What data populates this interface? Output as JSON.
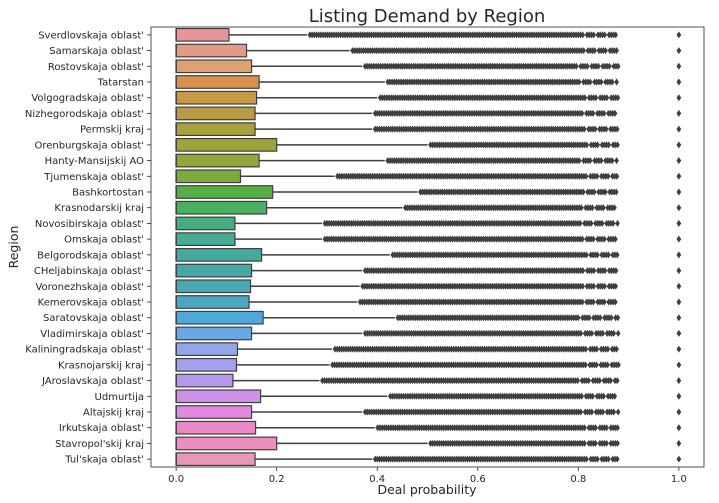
{
  "chart_data": {
    "type": "box",
    "orientation": "horizontal",
    "title": "Listing Demand by Region",
    "xlabel": "Deal probability",
    "ylabel": "Region",
    "xlim": [
      -0.05,
      1.05
    ],
    "xticks": [
      0.0,
      0.2,
      0.4,
      0.6,
      0.8,
      1.0
    ],
    "xtick_labels": [
      "0.0",
      "0.2",
      "0.4",
      "0.6",
      "0.8",
      "1.0"
    ],
    "grid": false,
    "categories": [
      "Sverdlovskaja oblast'",
      "Samarskaja oblast'",
      "Rostovskaja oblast'",
      "Tatarstan",
      "Volgogradskaja oblast'",
      "Nizhegorodskaja oblast'",
      "Permskij kraj",
      "Orenburgskaja oblast'",
      "Hanty-Mansijskij AO",
      "Tjumenskaja oblast'",
      "Bashkortostan",
      "Krasnodarskij kraj",
      "Novosibirskaja oblast'",
      "Omskaja oblast'",
      "Belgorodskaja oblast'",
      "CHeljabinskaja oblast'",
      "Voronezhskaja oblast'",
      "Kemerovskaja oblast'",
      "Saratovskaja oblast'",
      "Vladimirskaja oblast'",
      "Kaliningradskaja oblast'",
      "Krasnojarskij kraj",
      "JAroslavskaja oblast'",
      "Udmurtija",
      "Altajskij kraj",
      "Irkutskaja oblast'",
      "Stavropol'skij kraj",
      "Tul'skaja oblast'"
    ],
    "colors": [
      "#e8959a",
      "#e59a86",
      "#e0a070",
      "#d8904c",
      "#c79a46",
      "#b89a46",
      "#aaa03c",
      "#9ea33a",
      "#93a63a",
      "#7cab3c",
      "#57b046",
      "#4aaf5e",
      "#45ad80",
      "#46ab92",
      "#45a99e",
      "#47a8a9",
      "#48a8b4",
      "#4aa8c2",
      "#4ea8d8",
      "#6aa8e5",
      "#93a6ec",
      "#a5a0ef",
      "#b698ee",
      "#d090ea",
      "#e389e2",
      "#e88ac8",
      "#ec8fc0",
      "#e898b4"
    ],
    "q1": [
      0,
      0,
      0,
      0,
      0,
      0,
      0,
      0,
      0,
      0,
      0,
      0,
      0,
      0,
      0,
      0,
      0,
      0,
      0,
      0,
      0,
      0,
      0,
      0,
      0,
      0,
      0,
      0
    ],
    "whisker_low": [
      0,
      0,
      0,
      0,
      0,
      0,
      0,
      0,
      0,
      0,
      0,
      0,
      0,
      0,
      0,
      0,
      0,
      0,
      0,
      0,
      0,
      0,
      0,
      0,
      0,
      0,
      0,
      0
    ],
    "median": [
      0,
      0,
      0,
      0,
      0,
      0,
      0,
      0,
      0,
      0,
      0,
      0,
      0,
      0,
      0,
      0,
      0,
      0,
      0,
      0,
      0,
      0,
      0,
      0,
      0,
      0,
      0,
      0
    ],
    "q3": [
      0.105,
      0.14,
      0.15,
      0.165,
      0.16,
      0.157,
      0.157,
      0.2,
      0.165,
      0.128,
      0.192,
      0.18,
      0.117,
      0.117,
      0.17,
      0.15,
      0.148,
      0.145,
      0.173,
      0.15,
      0.122,
      0.12,
      0.113,
      0.168,
      0.15,
      0.158,
      0.2,
      0.157
    ],
    "whisker_high": [
      0.26,
      0.345,
      0.37,
      0.415,
      0.4,
      0.39,
      0.39,
      0.5,
      0.415,
      0.315,
      0.48,
      0.45,
      0.29,
      0.29,
      0.425,
      0.37,
      0.365,
      0.36,
      0.435,
      0.37,
      0.31,
      0.305,
      0.285,
      0.42,
      0.37,
      0.395,
      0.5,
      0.39
    ],
    "outlier_max": [
      0.88,
      0.88,
      0.88,
      0.88,
      0.88,
      0.88,
      0.88,
      0.88,
      0.88,
      0.88,
      0.88,
      0.88,
      0.88,
      0.88,
      0.88,
      0.88,
      0.88,
      0.88,
      0.88,
      0.88,
      0.88,
      0.88,
      0.88,
      0.88,
      0.88,
      0.88,
      0.88,
      0.88
    ],
    "outlier_top": [
      1,
      1,
      1,
      1,
      1,
      1,
      1,
      1,
      1,
      1,
      1,
      1,
      1,
      1,
      1,
      1,
      1,
      1,
      1,
      1,
      1,
      1,
      1,
      1,
      1,
      1,
      1,
      1
    ]
  }
}
